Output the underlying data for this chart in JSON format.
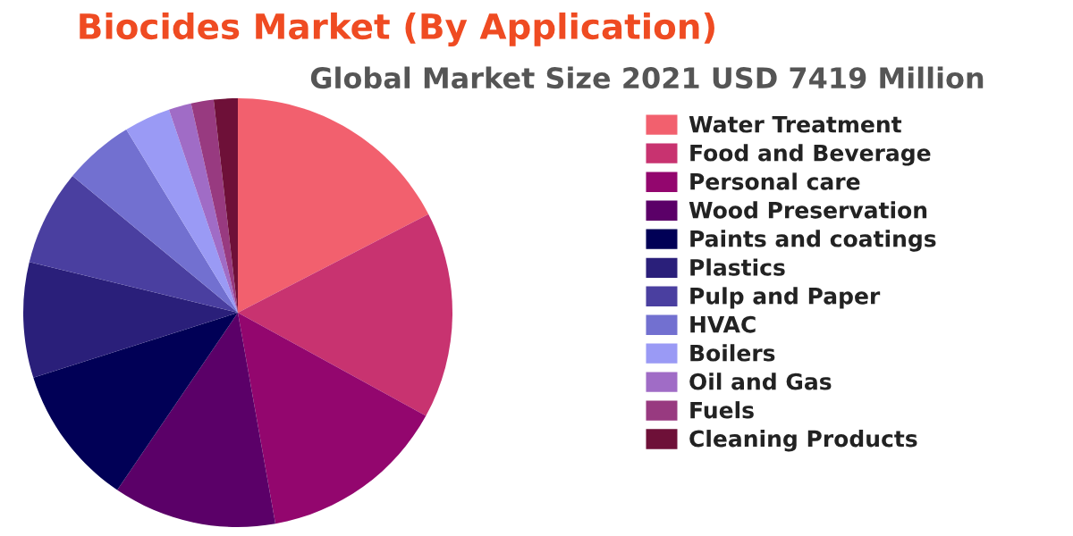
{
  "chart_data": {
    "type": "pie",
    "title": "Biocides Market (By Application)",
    "subtitle": "Global Market Size 2021 USD 7419 Million",
    "categories": [
      "Water Treatment",
      "Food and Beverage",
      "Personal care",
      "Wood Preservation",
      "Paints and coatings",
      "Plastics",
      "Pulp and Paper",
      "HVAC",
      "Boilers",
      "Oil and Gas",
      "Fuels",
      "Cleaning Products"
    ],
    "values": [
      17.4,
      15.6,
      14.2,
      12.3,
      10.6,
      8.7,
      7.2,
      5.3,
      3.5,
      1.7,
      1.7,
      1.8
    ],
    "colors": [
      "#f2606e",
      "#c83370",
      "#93066e",
      "#5b0068",
      "#010056",
      "#2a1f7a",
      "#4a3fa0",
      "#7270d0",
      "#9a9af5",
      "#a06cc6",
      "#983a80",
      "#6e1038"
    ],
    "legend": "right"
  }
}
